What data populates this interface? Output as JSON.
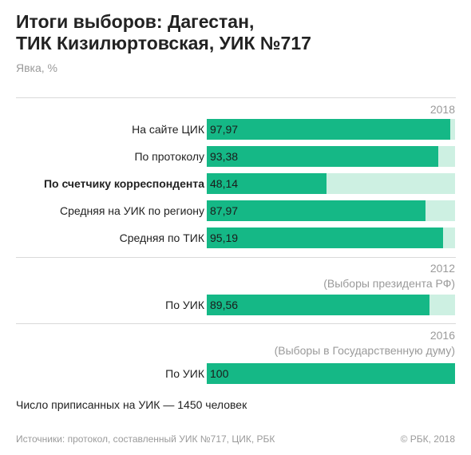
{
  "title_line1": "Итоги выборов: Дагестан,",
  "title_line2": "ТИК Кизилюртовская, УИК №717",
  "subtitle": "Явка, %",
  "note": "Число приписанных на УИК — 1450 человек",
  "source": "Источники: протокол, составленный УИК №717, ЦИК, РБК",
  "copyright": "© РБК, 2018",
  "colors": {
    "bar": "#15b886",
    "track": "#cdf0e2",
    "rule": "#d9d9d9"
  },
  "chart_data": {
    "type": "bar",
    "orientation": "horizontal",
    "xlim": [
      0,
      100
    ],
    "groups": [
      {
        "year": "2018",
        "caption": "",
        "bars": [
          {
            "label": "На сайте ЦИК",
            "value": 97.97,
            "value_label": "97,97",
            "bold": false
          },
          {
            "label": "По протоколу",
            "value": 93.38,
            "value_label": "93,38",
            "bold": false
          },
          {
            "label": "По счетчику корреспондента",
            "value": 48.14,
            "value_label": "48,14",
            "bold": true
          },
          {
            "label": "Средняя на УИК по региону",
            "value": 87.97,
            "value_label": "87,97",
            "bold": false
          },
          {
            "label": "Средняя по ТИК",
            "value": 95.19,
            "value_label": "95,19",
            "bold": false
          }
        ]
      },
      {
        "year": "2012",
        "caption": "(Выборы президента РФ)",
        "bars": [
          {
            "label": "По УИК",
            "value": 89.56,
            "value_label": "89,56",
            "bold": false
          }
        ]
      },
      {
        "year": "2016",
        "caption": "(Выборы в Государственную думу)",
        "bars": [
          {
            "label": "По УИК",
            "value": 100,
            "value_label": "100",
            "bold": false
          }
        ]
      }
    ]
  }
}
